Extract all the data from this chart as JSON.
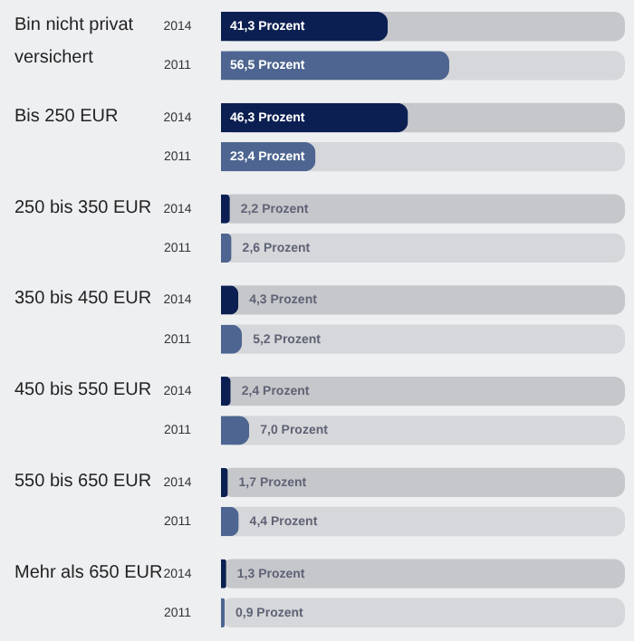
{
  "chart_data": {
    "type": "bar",
    "orientation": "horizontal",
    "categories": [
      "Bin nicht privat versichert",
      "Bis 250 EUR",
      "250 bis 350 EUR",
      "350 bis 450 EUR",
      "450 bis 550 EUR",
      "550 bis 650 EUR",
      "Mehr als 650 EUR"
    ],
    "series": [
      {
        "name": "2014",
        "color": "#0b1f52",
        "values": [
          41.3,
          46.3,
          2.2,
          4.3,
          2.4,
          1.7,
          1.3
        ],
        "value_labels": [
          "41,3 Prozent",
          "46,3 Prozent",
          "2,2 Prozent",
          "4,3 Prozent",
          "2,4 Prozent",
          "1,7 Prozent",
          "1,3 Prozent"
        ]
      },
      {
        "name": "2011",
        "color": "#4d6590",
        "values": [
          56.5,
          23.4,
          2.6,
          5.2,
          7.0,
          4.4,
          0.9
        ],
        "value_labels": [
          "56,5 Prozent",
          "23,4 Prozent",
          "2,6 Prozent",
          "5,2 Prozent",
          "7,0 Prozent",
          "4,4 Prozent",
          "0,9 Prozent"
        ]
      }
    ],
    "xlim": [
      0,
      100
    ],
    "tick_labels": false,
    "grid": false
  }
}
